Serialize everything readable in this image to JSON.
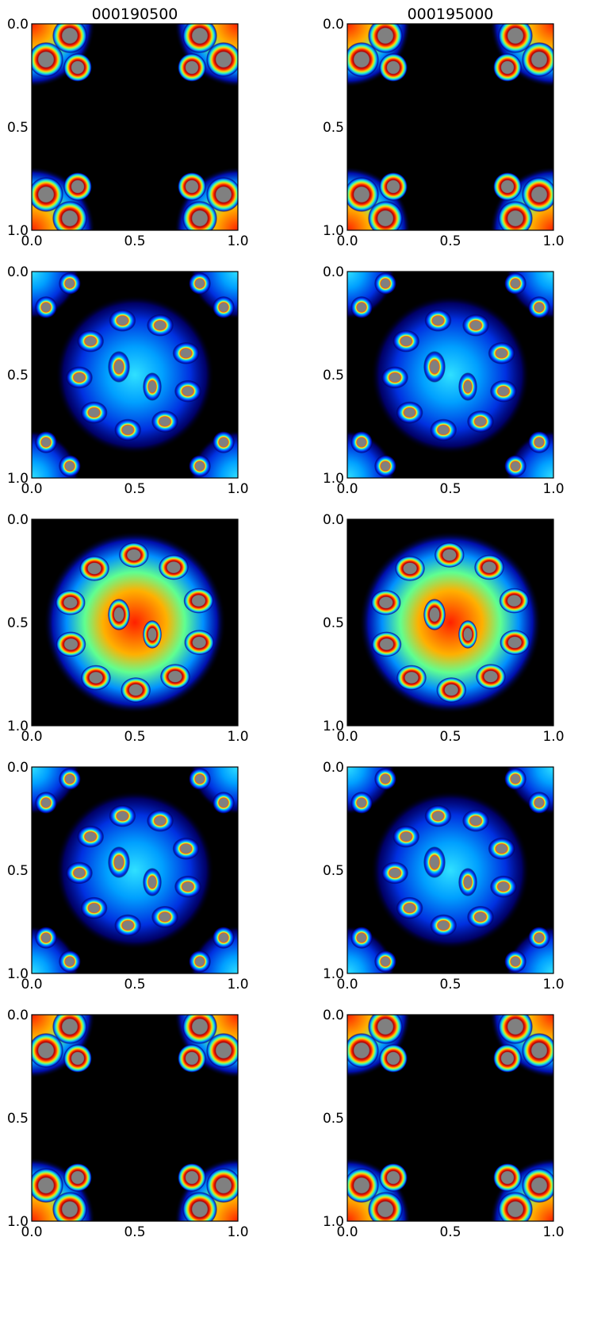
{
  "figure": {
    "column_titles": [
      "000190500",
      "000195000"
    ]
  },
  "chart_data": {
    "type": "heatmap",
    "colormap": "jet",
    "background_color": "#000000",
    "saturated_color": "#808080",
    "rows": 5,
    "cols": 2,
    "xlim": [
      0.0,
      1.0
    ],
    "ylim": [
      1.0,
      0.0
    ],
    "xticks": [
      "0.0",
      "0.5",
      "1.0"
    ],
    "yticks": [
      "0.0",
      "0.5",
      "1.0"
    ],
    "grid": false,
    "panels": [
      {
        "row": 1,
        "col": 1,
        "title": "000190500",
        "pattern": "corners",
        "intensity": "high"
      },
      {
        "row": 1,
        "col": 2,
        "title": "000195000",
        "pattern": "corners",
        "intensity": "high"
      },
      {
        "row": 2,
        "col": 1,
        "pattern": "center-and-corners",
        "intensity": "medium"
      },
      {
        "row": 2,
        "col": 2,
        "pattern": "center-and-corners",
        "intensity": "medium"
      },
      {
        "row": 3,
        "col": 1,
        "pattern": "center",
        "intensity": "high"
      },
      {
        "row": 3,
        "col": 2,
        "pattern": "center",
        "intensity": "high"
      },
      {
        "row": 4,
        "col": 1,
        "pattern": "center-and-corners",
        "intensity": "medium"
      },
      {
        "row": 4,
        "col": 2,
        "pattern": "center-and-corners",
        "intensity": "medium"
      },
      {
        "row": 5,
        "col": 1,
        "pattern": "corners",
        "intensity": "high"
      },
      {
        "row": 5,
        "col": 2,
        "pattern": "corners",
        "intensity": "high"
      }
    ]
  }
}
